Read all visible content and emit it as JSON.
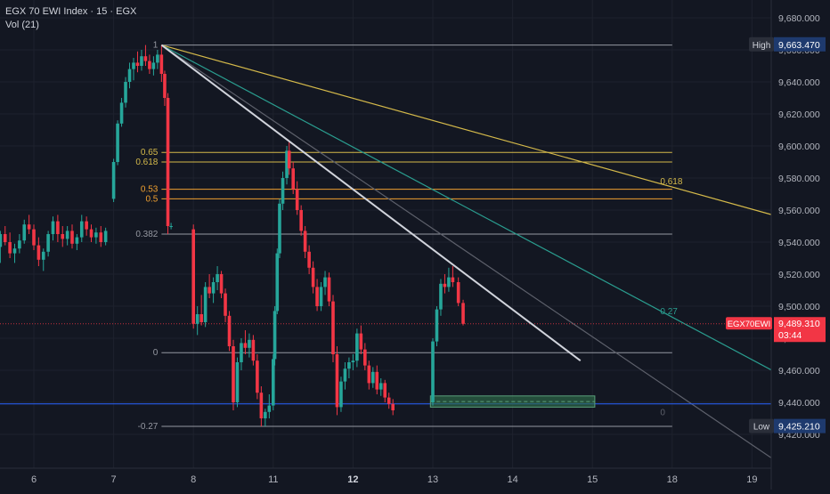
{
  "legend": {
    "title": "EGX 70 EWI Index · 15 · EGX",
    "indicator": "Vol (21)"
  },
  "colors": {
    "background": "#131722",
    "grid": "#1e222d",
    "up": "#26a69a",
    "down": "#f23645",
    "axis_text": "#b2b5be",
    "fib_gold": "#d4b94a",
    "fib_orange": "#f0a030",
    "fib_gray": "#787b86",
    "fib_teal": "#2a9d8f",
    "trend_white": "#d1d4dc",
    "blue_line": "#2962ff",
    "high_label_bg": "#1e3a6e",
    "price_label_bg": "#f23645"
  },
  "chart_data": {
    "type": "candlestick",
    "title": "EGX 70 EWI Index · 15 · EGX",
    "ylim": [
      9412,
      9690
    ],
    "y_ticks": [
      {
        "value": 9680,
        "label": "9,680.000"
      },
      {
        "value": 9660,
        "label": "9,660.000"
      },
      {
        "value": 9640,
        "label": "9,640.000"
      },
      {
        "value": 9620,
        "label": "9,620.000"
      },
      {
        "value": 9600,
        "label": "9,600.000"
      },
      {
        "value": 9580,
        "label": "9,580.000"
      },
      {
        "value": 9560,
        "label": "9,560.000"
      },
      {
        "value": 9540,
        "label": "9,540.000"
      },
      {
        "value": 9520,
        "label": "9,520.000"
      },
      {
        "value": 9500,
        "label": "9,500.000"
      },
      {
        "value": 9480,
        "label": "9,480.000"
      },
      {
        "value": 9460,
        "label": "9,460.000"
      },
      {
        "value": 9440,
        "label": "9,440.000"
      },
      {
        "value": 9420,
        "label": "9,420.000"
      }
    ],
    "x_ticks": [
      {
        "value": 0,
        "label": "6",
        "bold": false
      },
      {
        "value": 1,
        "label": "7",
        "bold": false
      },
      {
        "value": 2,
        "label": "8",
        "bold": false
      },
      {
        "value": 3,
        "label": "11",
        "bold": false
      },
      {
        "value": 4,
        "label": "12",
        "bold": true
      },
      {
        "value": 5,
        "label": "13",
        "bold": false
      },
      {
        "value": 6,
        "label": "14",
        "bold": false
      },
      {
        "value": 7,
        "label": "15",
        "bold": false
      },
      {
        "value": 8,
        "label": "18",
        "bold": false
      },
      {
        "value": 9,
        "label": "19",
        "bold": false
      }
    ],
    "candles": [
      [
        -0.42,
        9537,
        9547,
        9527,
        9545
      ],
      [
        -0.36,
        9545,
        9550,
        9538,
        9540
      ],
      [
        -0.3,
        9540,
        9546,
        9530,
        9533
      ],
      [
        -0.24,
        9533,
        9539,
        9527,
        9536
      ],
      [
        -0.18,
        9536,
        9545,
        9533,
        9541
      ],
      [
        -0.12,
        9541,
        9554,
        9539,
        9551
      ],
      [
        -0.06,
        9551,
        9557,
        9545,
        9548
      ],
      [
        0.0,
        9548,
        9551,
        9535,
        9538
      ],
      [
        0.06,
        9538,
        9543,
        9525,
        9529
      ],
      [
        0.12,
        9529,
        9536,
        9522,
        9534
      ],
      [
        0.18,
        9534,
        9547,
        9531,
        9545
      ],
      [
        0.24,
        9545,
        9556,
        9541,
        9553
      ],
      [
        0.3,
        9553,
        9557,
        9540,
        9545
      ],
      [
        0.36,
        9545,
        9550,
        9537,
        9542
      ],
      [
        0.42,
        9542,
        9550,
        9538,
        9547
      ],
      [
        0.48,
        9547,
        9551,
        9536,
        9539
      ],
      [
        0.54,
        9539,
        9545,
        9535,
        9543
      ],
      [
        0.6,
        9543,
        9557,
        9540,
        9553
      ],
      [
        0.66,
        9553,
        9556,
        9544,
        9548
      ],
      [
        0.72,
        9548,
        9551,
        9540,
        9543
      ],
      [
        0.78,
        9543,
        9549,
        9539,
        9546
      ],
      [
        0.84,
        9546,
        9550,
        9537,
        9540
      ],
      [
        0.9,
        9540,
        9549,
        9538,
        9547
      ],
      [
        1.0,
        9567,
        9592,
        9565,
        9590
      ],
      [
        1.05,
        9590,
        9616,
        9588,
        9614
      ],
      [
        1.1,
        9614,
        9630,
        9612,
        9627
      ],
      [
        1.15,
        9627,
        9643,
        9624,
        9640
      ],
      [
        1.2,
        9640,
        9652,
        9636,
        9648
      ],
      [
        1.25,
        9648,
        9655,
        9641,
        9652
      ],
      [
        1.3,
        9652,
        9659,
        9646,
        9650
      ],
      [
        1.35,
        9650,
        9660,
        9647,
        9656
      ],
      [
        1.4,
        9656,
        9663,
        9650,
        9653
      ],
      [
        1.45,
        9653,
        9657,
        9645,
        9648
      ],
      [
        1.5,
        9648,
        9656,
        9644,
        9652
      ],
      [
        1.55,
        9652,
        9660,
        9648,
        9657
      ],
      [
        1.6,
        9657,
        9663,
        9640,
        9645
      ],
      [
        1.64,
        9645,
        9647,
        9625,
        9630
      ],
      [
        1.68,
        9630,
        9633,
        9545,
        9550
      ],
      [
        1.72,
        9550,
        9552,
        9548,
        9550
      ],
      [
        2.0,
        9548,
        9551,
        9486,
        9489
      ],
      [
        2.05,
        9489,
        9500,
        9482,
        9495
      ],
      [
        2.1,
        9495,
        9507,
        9488,
        9490
      ],
      [
        2.15,
        9490,
        9515,
        9487,
        9512
      ],
      [
        2.2,
        9512,
        9520,
        9505,
        9508
      ],
      [
        2.25,
        9508,
        9518,
        9502,
        9515
      ],
      [
        2.3,
        9515,
        9525,
        9510,
        9520
      ],
      [
        2.35,
        9520,
        9522,
        9505,
        9508
      ],
      [
        2.4,
        9508,
        9511,
        9490,
        9494
      ],
      [
        2.45,
        9494,
        9497,
        9472,
        9475
      ],
      [
        2.5,
        9475,
        9479,
        9435,
        9440
      ],
      [
        2.55,
        9440,
        9468,
        9437,
        9465
      ],
      [
        2.6,
        9465,
        9480,
        9460,
        9477
      ],
      [
        2.65,
        9477,
        9485,
        9470,
        9474
      ],
      [
        2.7,
        9474,
        9483,
        9468,
        9479
      ],
      [
        2.75,
        9479,
        9482,
        9463,
        9466
      ],
      [
        2.8,
        9466,
        9470,
        9442,
        9446
      ],
      [
        2.85,
        9446,
        9450,
        9425,
        9430
      ],
      [
        2.9,
        9430,
        9436,
        9425,
        9434
      ],
      [
        2.95,
        9434,
        9445,
        9430,
        9438
      ],
      [
        3.0,
        9438,
        9470,
        9435,
        9467
      ],
      [
        3.02,
        9467,
        9500,
        9463,
        9497
      ],
      [
        3.05,
        9497,
        9536,
        9495,
        9533
      ],
      [
        3.08,
        9533,
        9567,
        9530,
        9564
      ],
      [
        3.12,
        9564,
        9584,
        9560,
        9580
      ],
      [
        3.17,
        9580,
        9600,
        9576,
        9597
      ],
      [
        3.2,
        9597,
        9603,
        9582,
        9586
      ],
      [
        3.25,
        9586,
        9590,
        9570,
        9573
      ],
      [
        3.3,
        9573,
        9578,
        9557,
        9560
      ],
      [
        3.35,
        9560,
        9563,
        9544,
        9547
      ],
      [
        3.4,
        9547,
        9550,
        9530,
        9534
      ],
      [
        3.45,
        9534,
        9538,
        9520,
        9524
      ],
      [
        3.5,
        9524,
        9528,
        9508,
        9512
      ],
      [
        3.55,
        9512,
        9517,
        9497,
        9500
      ],
      [
        3.6,
        9500,
        9515,
        9497,
        9512
      ],
      [
        3.65,
        9512,
        9522,
        9507,
        9518
      ],
      [
        3.7,
        9518,
        9521,
        9500,
        9503
      ],
      [
        3.75,
        9503,
        9507,
        9465,
        9470
      ],
      [
        3.8,
        9470,
        9475,
        9432,
        9437
      ],
      [
        3.85,
        9437,
        9456,
        9434,
        9453
      ],
      [
        3.9,
        9453,
        9465,
        9448,
        9461
      ],
      [
        3.95,
        9461,
        9468,
        9455,
        9465
      ],
      [
        4.0,
        9465,
        9470,
        9460,
        9466
      ],
      [
        4.05,
        9466,
        9486,
        9462,
        9483
      ],
      [
        4.1,
        9483,
        9488,
        9470,
        9473
      ],
      [
        4.15,
        9473,
        9477,
        9460,
        9463
      ],
      [
        4.2,
        9463,
        9466,
        9448,
        9452
      ],
      [
        4.25,
        9452,
        9462,
        9449,
        9459
      ],
      [
        4.3,
        9459,
        9463,
        9445,
        9448
      ],
      [
        4.35,
        9448,
        9455,
        9444,
        9452
      ],
      [
        4.4,
        9452,
        9454,
        9440,
        9443
      ],
      [
        4.45,
        9443,
        9446,
        9436,
        9439
      ],
      [
        4.5,
        9439,
        9442,
        9432,
        9435
      ],
      [
        5.0,
        9440,
        9480,
        9438,
        9478
      ],
      [
        5.05,
        9478,
        9500,
        9475,
        9498
      ],
      [
        5.1,
        9498,
        9517,
        9494,
        9514
      ],
      [
        5.15,
        9514,
        9520,
        9508,
        9512
      ],
      [
        5.2,
        9512,
        9524,
        9509,
        9518
      ],
      [
        5.25,
        9518,
        9525,
        9512,
        9515
      ],
      [
        5.32,
        9515,
        9518,
        9500,
        9502
      ],
      [
        5.38,
        9502,
        9504,
        9488,
        9489
      ]
    ],
    "fib_retracement": {
      "anchor_high": 9663,
      "anchor_low": 9471,
      "x_start": 1.6,
      "x_end": 8.0,
      "levels": [
        {
          "ratio": 1,
          "label": "1",
          "price": 9663,
          "color": "#9598a1"
        },
        {
          "ratio": 0.65,
          "label": "0.65",
          "price": 9596,
          "color": "#d4b94a"
        },
        {
          "ratio": 0.618,
          "label": "0.618",
          "price": 9590,
          "color": "#d4b94a"
        },
        {
          "ratio": 0.53,
          "label": "0.53",
          "price": 9573,
          "color": "#f0a030"
        },
        {
          "ratio": 0.5,
          "label": "0.5",
          "price": 9567,
          "color": "#f0a030"
        },
        {
          "ratio": 0.382,
          "label": "0.382",
          "price": 9545,
          "color": "#9598a1"
        },
        {
          "ratio": 0,
          "label": "0",
          "price": 9471,
          "color": "#9598a1"
        },
        {
          "ratio": -0.27,
          "label": "-0.27",
          "price": 9425,
          "color": "#9598a1"
        }
      ]
    },
    "fan_lines": [
      {
        "label": "0.618",
        "x1": 1.6,
        "y1": 9663,
        "x2": 9.4,
        "y2": 9555,
        "color": "#d4b94a",
        "label_x": 7.85,
        "label_y": 9576
      },
      {
        "label": "0.27",
        "x1": 1.6,
        "y1": 9663,
        "x2": 9.4,
        "y2": 9456,
        "color": "#2a9d8f",
        "label_x": 7.85,
        "label_y": 9495
      },
      {
        "label": "0",
        "x1": 1.6,
        "y1": 9663,
        "x2": 9.4,
        "y2": 9400,
        "color": "#5d606b",
        "label_x": 7.85,
        "label_y": 9432
      }
    ],
    "trend_line": {
      "x1": 1.6,
      "y1": 9663,
      "x2": 6.85,
      "y2": 9466,
      "color": "#d1d4dc"
    },
    "horizontal_line": {
      "price": 9439,
      "color": "#2962ff"
    },
    "current_price_line": {
      "price": 9489,
      "color": "#f23645"
    },
    "rectangle": {
      "x1": 4.97,
      "x2": 7.03,
      "y_top": 9444,
      "y_bottom": 9437,
      "fill": "#2e6b4a",
      "border": "#5a9f7a"
    },
    "high": {
      "label": "High",
      "value": "9,663.470",
      "price": 9663.47
    },
    "low": {
      "label": "Low",
      "value": "9,425.210",
      "price": 9425.21
    },
    "last": {
      "symbol": "EGX70EWI",
      "value": "9,489.310",
      "countdown": "03:44",
      "price": 9489.31
    }
  }
}
